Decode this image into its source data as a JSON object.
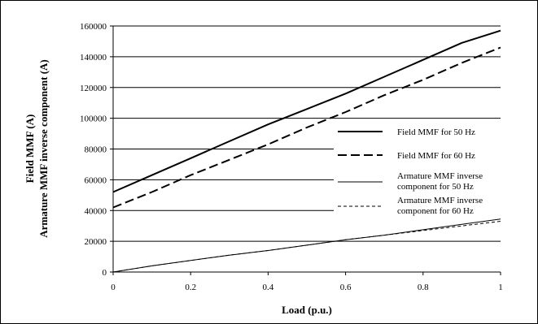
{
  "chart_data": {
    "type": "line",
    "title": "",
    "xlabel": "Load (p.u.)",
    "ylabel_line1": "Field MMF (A)",
    "ylabel_line2": "Armature MMF inverse component (A)",
    "xlim": [
      0,
      1
    ],
    "ylim": [
      0,
      160000
    ],
    "x_ticks": [
      0,
      0.2,
      0.4,
      0.6,
      0.8,
      1
    ],
    "x_tick_labels": [
      "0",
      "0.2",
      "0.4",
      "0.6",
      "0.8",
      "1"
    ],
    "y_ticks": [
      0,
      20000,
      40000,
      60000,
      80000,
      100000,
      120000,
      140000,
      160000
    ],
    "y_tick_labels": [
      "0",
      "20000",
      "40000",
      "60000",
      "80000",
      "100000",
      "120000",
      "140000",
      "160000"
    ],
    "grid": "horizontal",
    "legend_position": "right",
    "x": [
      0,
      0.1,
      0.2,
      0.3,
      0.4,
      0.5,
      0.6,
      0.7,
      0.8,
      0.9,
      1.0
    ],
    "series": [
      {
        "name": "Field MMF for  50 Hz",
        "style": "solid-thick",
        "values": [
          52000,
          63000,
          74000,
          85000,
          96000,
          106000,
          116000,
          127000,
          138000,
          149000,
          157000
        ]
      },
      {
        "name": "Field MMF for 60 Hz",
        "style": "dashed-thick",
        "values": [
          42000,
          52000,
          63000,
          73000,
          83000,
          94000,
          104000,
          115000,
          125000,
          136000,
          146000
        ]
      },
      {
        "name": "Armature MMF inverse component  for 50 Hz",
        "style": "solid-thin",
        "values": [
          0,
          4000,
          7500,
          11000,
          14000,
          17500,
          21000,
          24000,
          27500,
          31000,
          34500
        ]
      },
      {
        "name": "Armature MMF inverse component  for 60 Hz",
        "style": "dashed-thin",
        "values": [
          0,
          4000,
          7500,
          11000,
          14000,
          17500,
          21000,
          24000,
          27000,
          30000,
          33000
        ]
      }
    ],
    "legend": [
      {
        "line1": "Field MMF for  50 Hz",
        "line2": ""
      },
      {
        "line1": "Field MMF for 60 Hz",
        "line2": ""
      },
      {
        "line1": "Armature MMF inverse",
        "line2": "component  for 50 Hz"
      },
      {
        "line1": "Armature MMF inverse",
        "line2": "component  for 60 Hz"
      }
    ]
  }
}
